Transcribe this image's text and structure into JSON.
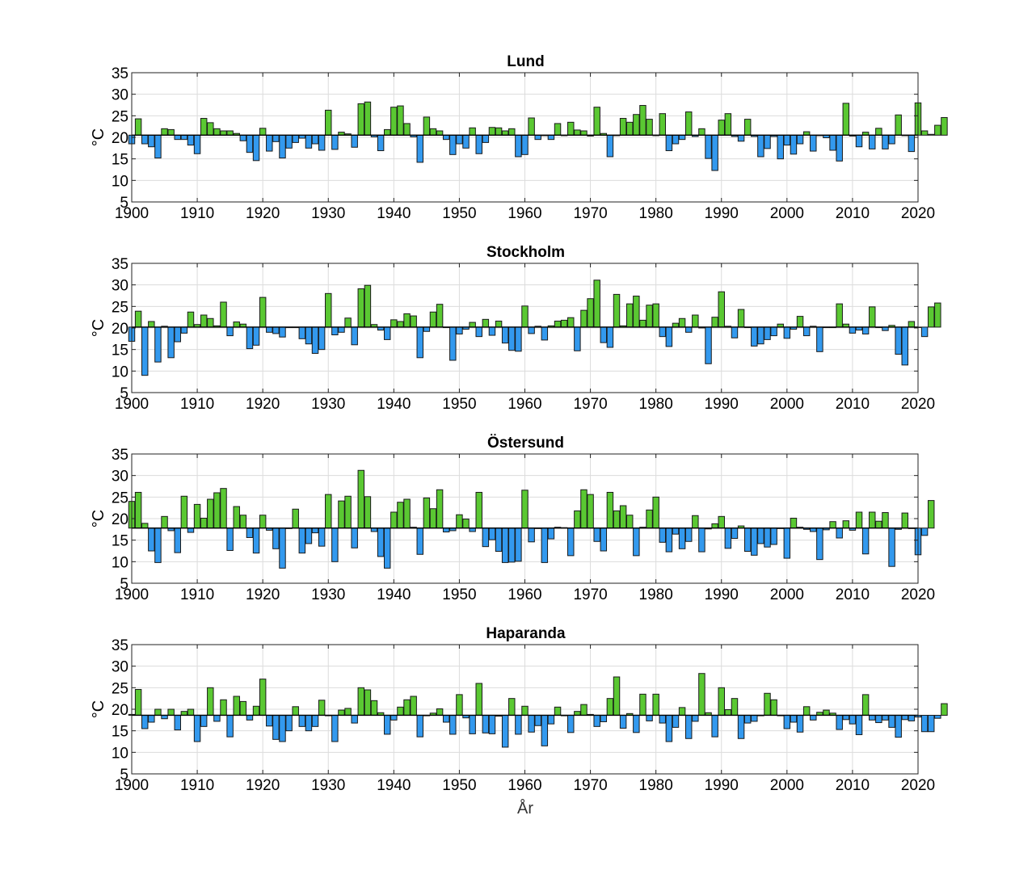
{
  "chart_data": {
    "type": "bar",
    "xlabel": "År",
    "ylabel": "°C",
    "xlim": [
      1900,
      2020
    ],
    "xticks": [
      1900,
      1910,
      1920,
      1930,
      1940,
      1950,
      1960,
      1970,
      1980,
      1990,
      2000,
      2010,
      2020
    ],
    "ylim": [
      5,
      35
    ],
    "yticks": [
      5,
      10,
      15,
      20,
      25,
      30,
      35
    ],
    "grid": true,
    "colors": {
      "above": "#5ac832",
      "below": "#3399ee",
      "edge": "#1a1a1a"
    },
    "panels": [
      {
        "title": "Lund",
        "baseline": 20.5,
        "years": [
          1900,
          2020
        ],
        "values": [
          18.5,
          24.3,
          18.5,
          17.8,
          15.2,
          22.0,
          21.8,
          19.5,
          19.5,
          18.2,
          16.2,
          24.4,
          23.4,
          22.0,
          21.5,
          21.5,
          20.9,
          19.2,
          16.5,
          14.6,
          22.1,
          16.8,
          19.0,
          15.2,
          17.5,
          18.8,
          19.8,
          17.5,
          18.5,
          17.0,
          26.3,
          17.2,
          21.2,
          20.8,
          17.7,
          27.8,
          28.2,
          20.1,
          16.9,
          21.8,
          27.0,
          27.3,
          23.2,
          20.1,
          14.2,
          24.7,
          22.0,
          21.5,
          19.5,
          16.0,
          18.5,
          17.5,
          22.2,
          16.2,
          18.8,
          22.3,
          22.2,
          21.5,
          22.0,
          15.5,
          16.0,
          24.5,
          19.5,
          20.5,
          19.5,
          23.2,
          20.4,
          23.5,
          21.7,
          21.5,
          20.3,
          27.0,
          20.9,
          15.5,
          20.4,
          24.4,
          23.5,
          25.3,
          27.4,
          24.2,
          20.5,
          25.5,
          16.9,
          18.5,
          19.5,
          25.9,
          20.2,
          22.0,
          15.1,
          12.3,
          24.0,
          25.5,
          20.2,
          19.1,
          24.2,
          20.2,
          15.5,
          17.4,
          20.2,
          15.0,
          18.2,
          16.1,
          18.5,
          21.3,
          16.8,
          20.4,
          19.9,
          17.0,
          14.5,
          27.9,
          20.3,
          17.8,
          21.2,
          17.3,
          22.1,
          17.3,
          18.5,
          25.2,
          20.5,
          16.7,
          28.0,
          21.5,
          20.7,
          22.8,
          24.6
        ]
      },
      {
        "title": "Stockholm",
        "baseline": 20.2,
        "years": [
          1900,
          2020
        ],
        "values": [
          16.9,
          23.9,
          9.0,
          21.5,
          12.1,
          20.4,
          13.1,
          16.8,
          18.8,
          23.7,
          20.8,
          23.0,
          22.2,
          20.5,
          26.0,
          18.2,
          21.4,
          20.9,
          15.2,
          16.0,
          27.1,
          19.0,
          18.7,
          17.9,
          20.2,
          20.2,
          17.5,
          16.3,
          14.1,
          15.0,
          28.0,
          18.4,
          19.0,
          22.3,
          16.1,
          29.1,
          29.9,
          20.8,
          19.5,
          17.3,
          21.9,
          21.5,
          23.3,
          22.8,
          13.1,
          19.2,
          23.7,
          25.5,
          20.2,
          12.5,
          18.6,
          19.7,
          21.3,
          18.0,
          22.0,
          18.3,
          21.6,
          16.5,
          14.8,
          14.6,
          25.1,
          18.7,
          20.4,
          17.2,
          20.5,
          21.6,
          21.8,
          22.4,
          14.7,
          24.1,
          26.8,
          31.1,
          16.6,
          15.5,
          27.8,
          20.5,
          25.6,
          27.4,
          21.8,
          25.3,
          25.6,
          18.0,
          15.7,
          21.1,
          22.2,
          19.0,
          23.0,
          20.0,
          11.7,
          22.5,
          28.4,
          20.4,
          17.7,
          24.3,
          20.1,
          15.8,
          16.3,
          17.3,
          18.2,
          20.9,
          17.6,
          19.7,
          22.7,
          18.2,
          20.4,
          14.5,
          20.1,
          20.1,
          25.6,
          20.9,
          18.8,
          19.5,
          18.6,
          24.9,
          20.2,
          19.4,
          20.6,
          13.9,
          11.4,
          21.5,
          20.2,
          18.0,
          24.9,
          25.8
        ]
      },
      {
        "title": "Östersund",
        "baseline": 17.8,
        "years": [
          1900,
          2020
        ],
        "values": [
          24.0,
          26.1,
          18.9,
          12.5,
          9.8,
          20.5,
          17.2,
          12.1,
          25.2,
          16.8,
          23.3,
          20.1,
          24.5,
          26.0,
          27.0,
          12.6,
          22.8,
          20.8,
          15.6,
          12.0,
          20.8,
          17.3,
          13.0,
          8.5,
          17.7,
          22.2,
          12.0,
          14.2,
          16.7,
          13.6,
          25.6,
          10.0,
          24.1,
          25.2,
          13.2,
          31.2,
          25.1,
          17.0,
          11.2,
          8.5,
          21.5,
          23.8,
          24.5,
          18.0,
          11.7,
          24.8,
          22.3,
          26.7,
          16.9,
          17.2,
          20.9,
          19.9,
          17.0,
          26.1,
          13.5,
          15.1,
          12.4,
          9.8,
          9.9,
          10.1,
          26.6,
          14.6,
          17.8,
          9.8,
          15.3,
          18.0,
          17.9,
          11.4,
          21.8,
          26.7,
          25.6,
          14.7,
          12.5,
          26.1,
          21.8,
          23.0,
          20.8,
          11.4,
          18.0,
          22.0,
          25.0,
          14.5,
          12.3,
          16.4,
          13.0,
          14.7,
          20.7,
          12.3,
          17.6,
          18.8,
          20.5,
          13.1,
          15.4,
          18.3,
          12.4,
          11.5,
          14.2,
          13.4,
          14.0,
          17.7,
          10.8,
          20.1,
          18.0,
          17.5,
          17.0,
          10.5,
          17.4,
          19.3,
          15.5,
          19.5,
          17.3,
          21.5,
          11.8,
          21.5,
          19.4,
          21.4,
          8.9,
          17.5,
          21.3,
          17.8,
          11.6,
          16.1,
          24.2
        ]
      },
      {
        "title": "Haparanda",
        "baseline": 18.6,
        "years": [
          1900,
          2020
        ],
        "values": [
          18.8,
          24.6,
          15.5,
          17.0,
          20.0,
          17.8,
          20.0,
          15.2,
          19.5,
          20.0,
          12.5,
          16.0,
          25.0,
          17.2,
          22.2,
          13.6,
          23.0,
          21.8,
          17.5,
          20.7,
          27.0,
          16.1,
          13.0,
          12.5,
          15.0,
          20.6,
          16.0,
          15.0,
          16.0,
          22.1,
          18.6,
          12.5,
          19.8,
          20.2,
          16.8,
          25.0,
          24.5,
          22.0,
          19.2,
          14.2,
          17.5,
          20.5,
          22.2,
          23.0,
          13.6,
          18.6,
          19.1,
          20.1,
          17.0,
          14.2,
          23.4,
          18.0,
          14.3,
          26.0,
          14.5,
          14.3,
          18.4,
          11.2,
          22.5,
          14.2,
          20.7,
          14.7,
          16.2,
          11.5,
          16.6,
          20.5,
          18.6,
          14.6,
          19.5,
          21.1,
          18.8,
          16.0,
          17.1,
          22.5,
          27.5,
          15.6,
          19.0,
          14.6,
          23.5,
          17.3,
          23.5,
          16.8,
          12.5,
          15.8,
          20.4,
          13.2,
          17.2,
          28.3,
          19.2,
          13.6,
          25.0,
          19.9,
          22.5,
          13.2,
          16.8,
          17.2,
          18.6,
          23.7,
          22.2,
          18.6,
          15.5,
          17.0,
          14.7,
          20.6,
          17.5,
          19.3,
          19.8,
          19.1,
          15.3,
          17.6,
          16.6,
          14.1,
          23.4,
          17.5,
          16.9,
          17.5,
          15.8,
          13.5,
          17.6,
          17.3,
          18.2,
          14.8,
          14.8,
          17.9,
          21.3
        ]
      }
    ]
  }
}
